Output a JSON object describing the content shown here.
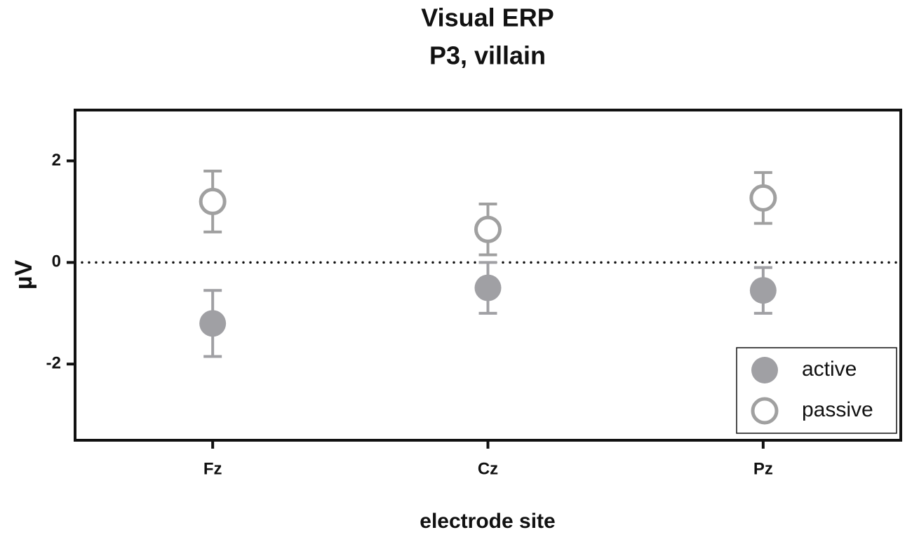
{
  "chart_data": {
    "type": "errorbar",
    "title": "Visual ERP",
    "subtitle": "P3, villain",
    "x_label": "electrode site",
    "y_label": "µV",
    "categories": [
      "Fz",
      "Cz",
      "Pz"
    ],
    "series": [
      {
        "name": "active",
        "color": "#a0a0a4",
        "filled": true,
        "values": [
          -1.2,
          -0.5,
          -0.55
        ],
        "errors": [
          0.65,
          0.5,
          0.45
        ]
      },
      {
        "name": "passive",
        "color": "#a0a0a0",
        "filled": false,
        "values": [
          1.2,
          0.65,
          1.27
        ],
        "errors": [
          0.6,
          0.5,
          0.5
        ]
      }
    ],
    "ylim": [
      -3.5,
      3
    ],
    "yticks": [
      -2,
      0,
      2
    ],
    "hline": 0,
    "legend": "lower right"
  }
}
